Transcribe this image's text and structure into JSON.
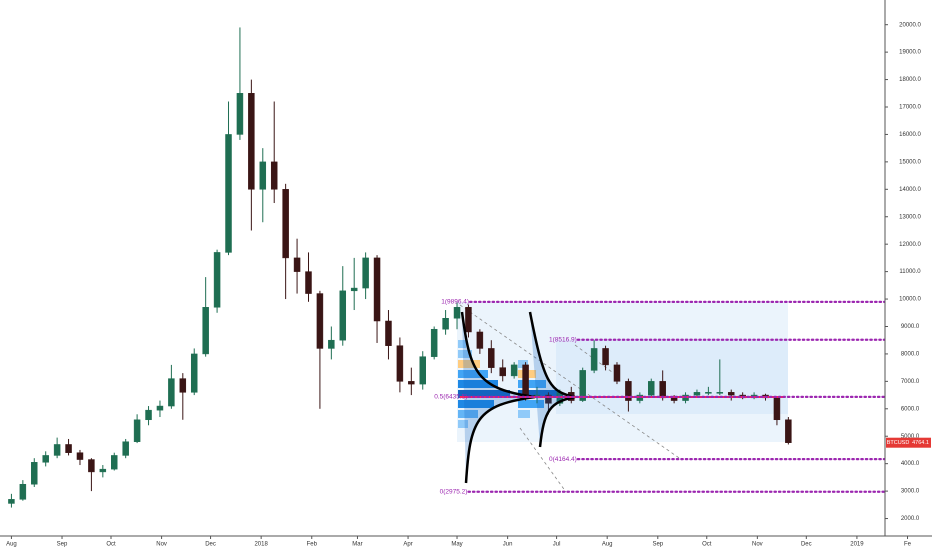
{
  "chart_data": {
    "type": "candlestick",
    "symbol": "BTCUSD",
    "last_price": 4764.1,
    "up_color": "#1f6e52",
    "down_color": "#3a1515",
    "xlim": [
      -7,
      564
    ],
    "xticks": [
      {
        "value": 0,
        "label": "Aug"
      },
      {
        "value": 31,
        "label": "Sep"
      },
      {
        "value": 61,
        "label": "Oct"
      },
      {
        "value": 92,
        "label": "Nov"
      },
      {
        "value": 122,
        "label": "Dec"
      },
      {
        "value": 153,
        "label": "2018"
      },
      {
        "value": 184,
        "label": "Feb"
      },
      {
        "value": 212,
        "label": "Mar"
      },
      {
        "value": 243,
        "label": "Apr"
      },
      {
        "value": 273,
        "label": "May"
      },
      {
        "value": 304,
        "label": "Jun"
      },
      {
        "value": 334,
        "label": "Jul"
      },
      {
        "value": 365,
        "label": "Aug"
      },
      {
        "value": 396,
        "label": "Sep"
      },
      {
        "value": 426,
        "label": "Oct"
      },
      {
        "value": 457,
        "label": "Nov"
      },
      {
        "value": 487,
        "label": "Dec"
      },
      {
        "value": 518,
        "label": "2019"
      },
      {
        "value": 549,
        "label": "Fe"
      }
    ],
    "ylim": [
      1400,
      20900
    ],
    "yticks": [
      {
        "value": 2000,
        "label": "2000.0"
      },
      {
        "value": 3000,
        "label": "3000.0"
      },
      {
        "value": 4000,
        "label": "4000.0"
      },
      {
        "value": 5000,
        "label": "5000.0"
      },
      {
        "value": 6000,
        "label": "6000.0"
      },
      {
        "value": 7000,
        "label": "7000.0"
      },
      {
        "value": 8000,
        "label": "8000.0"
      },
      {
        "value": 9000,
        "label": "9000.0"
      },
      {
        "value": 10000,
        "label": "10000.0"
      },
      {
        "value": 11000,
        "label": "11000.0"
      },
      {
        "value": 12000,
        "label": "12000.0"
      },
      {
        "value": 13000,
        "label": "13000.0"
      },
      {
        "value": 14000,
        "label": "14000.0"
      },
      {
        "value": 15000,
        "label": "15000.0"
      },
      {
        "value": 16000,
        "label": "16000.0"
      },
      {
        "value": 17000,
        "label": "17000.0"
      },
      {
        "value": 18000,
        "label": "18000.0"
      },
      {
        "value": 19000,
        "label": "19000.0"
      },
      {
        "value": 20000,
        "label": "20000.0"
      }
    ],
    "levels": [
      {
        "label": "1(9896.4)",
        "value": 9896.4,
        "start": 281,
        "color": "#9c27b0"
      },
      {
        "label": "1(8516.9)",
        "value": 8516.9,
        "start": 347,
        "color": "#9c27b0"
      },
      {
        "label": "0.5(6435.5)",
        "value": 6435.5,
        "start": 280,
        "color": "#9c27b0"
      },
      {
        "label": "0(4164.4)",
        "value": 4164.4,
        "start": 347,
        "color": "#9c27b0"
      },
      {
        "label": "0(2975.2)",
        "value": 2975.2,
        "start": 280,
        "color": "#9c27b0"
      }
    ],
    "series": {
      "x": [
        0,
        7,
        14,
        21,
        28,
        35,
        42,
        49,
        56,
        63,
        70,
        77,
        84,
        91,
        98,
        105,
        112,
        119,
        126,
        133,
        140,
        147,
        154,
        161,
        168,
        175,
        182,
        189,
        196,
        203,
        210,
        217,
        224,
        231,
        238,
        245,
        252,
        259,
        266,
        273,
        280,
        287,
        294,
        301,
        308,
        315,
        322,
        329,
        336,
        343,
        350,
        357,
        364,
        371,
        378,
        385,
        392,
        399,
        406,
        413,
        420,
        427,
        434,
        441,
        448,
        455,
        462,
        469,
        476
      ],
      "open": [
        2550,
        2700,
        3250,
        4050,
        4300,
        4700,
        4400,
        4150,
        3700,
        3800,
        4300,
        4800,
        5600,
        5950,
        6100,
        7100,
        6600,
        8000,
        9700,
        11700,
        16000,
        17500,
        14000,
        15000,
        14000,
        11500,
        11000,
        10200,
        8200,
        8500,
        10300,
        10400,
        11500,
        9200,
        8300,
        7000,
        6900,
        7900,
        8900,
        9300,
        9700,
        8800,
        8200,
        7500,
        7200,
        7600,
        6400,
        6500,
        6200,
        6600,
        6300,
        7400,
        8200,
        7600,
        7000,
        6300,
        6500,
        7000,
        6400,
        6300,
        6500,
        6600,
        6600,
        6600,
        6500,
        6400,
        6500,
        6400,
        5600
      ],
      "high": [
        2900,
        3400,
        4200,
        4450,
        4950,
        4900,
        4500,
        4200,
        3950,
        4400,
        4900,
        5800,
        6100,
        6300,
        7600,
        7300,
        8200,
        10800,
        11800,
        17200,
        19900,
        18000,
        15500,
        17200,
        14200,
        12200,
        11700,
        10300,
        9000,
        11200,
        11500,
        11700,
        11600,
        9600,
        8600,
        7500,
        8100,
        9000,
        9600,
        9900,
        9800,
        8900,
        8500,
        7800,
        7700,
        7700,
        6800,
        6600,
        6700,
        6800,
        7500,
        8500,
        8300,
        7700,
        7100,
        6600,
        7100,
        7400,
        6500,
        6600,
        6700,
        6800,
        7800,
        6700,
        6600,
        6600,
        6550,
        6450,
        5700
      ],
      "low": [
        2400,
        2650,
        3150,
        3900,
        4200,
        4300,
        3950,
        3000,
        3500,
        3750,
        4200,
        4750,
        5400,
        5700,
        6000,
        5600,
        6500,
        7900,
        9500,
        11600,
        15800,
        12500,
        12800,
        13500,
        10000,
        10200,
        9900,
        6000,
        7800,
        8300,
        9600,
        10000,
        8400,
        7800,
        6600,
        6500,
        6700,
        7800,
        8700,
        8900,
        8600,
        8000,
        7300,
        7000,
        7100,
        6300,
        6200,
        5800,
        6100,
        6200,
        6250,
        7300,
        7400,
        6900,
        5900,
        6200,
        6400,
        6300,
        6200,
        6200,
        6400,
        6500,
        6500,
        6300,
        6350,
        6350,
        6300,
        5400,
        4700
      ],
      "close": [
        2700,
        3250,
        4050,
        4300,
        4700,
        4400,
        4150,
        3700,
        3800,
        4300,
        4800,
        5600,
        5950,
        6100,
        7100,
        6600,
        8000,
        9700,
        11700,
        16000,
        17500,
        14000,
        15000,
        14000,
        11500,
        11000,
        10200,
        8200,
        8500,
        10300,
        10400,
        11500,
        9200,
        8300,
        7000,
        6900,
        7900,
        8900,
        9300,
        9700,
        8800,
        8200,
        7500,
        7200,
        7600,
        6400,
        6500,
        6200,
        6600,
        6300,
        7400,
        8200,
        7600,
        7000,
        6300,
        6500,
        7000,
        6400,
        6300,
        6500,
        6600,
        6600,
        6600,
        6500,
        6400,
        6500,
        6400,
        5600,
        4764.1
      ]
    }
  }
}
